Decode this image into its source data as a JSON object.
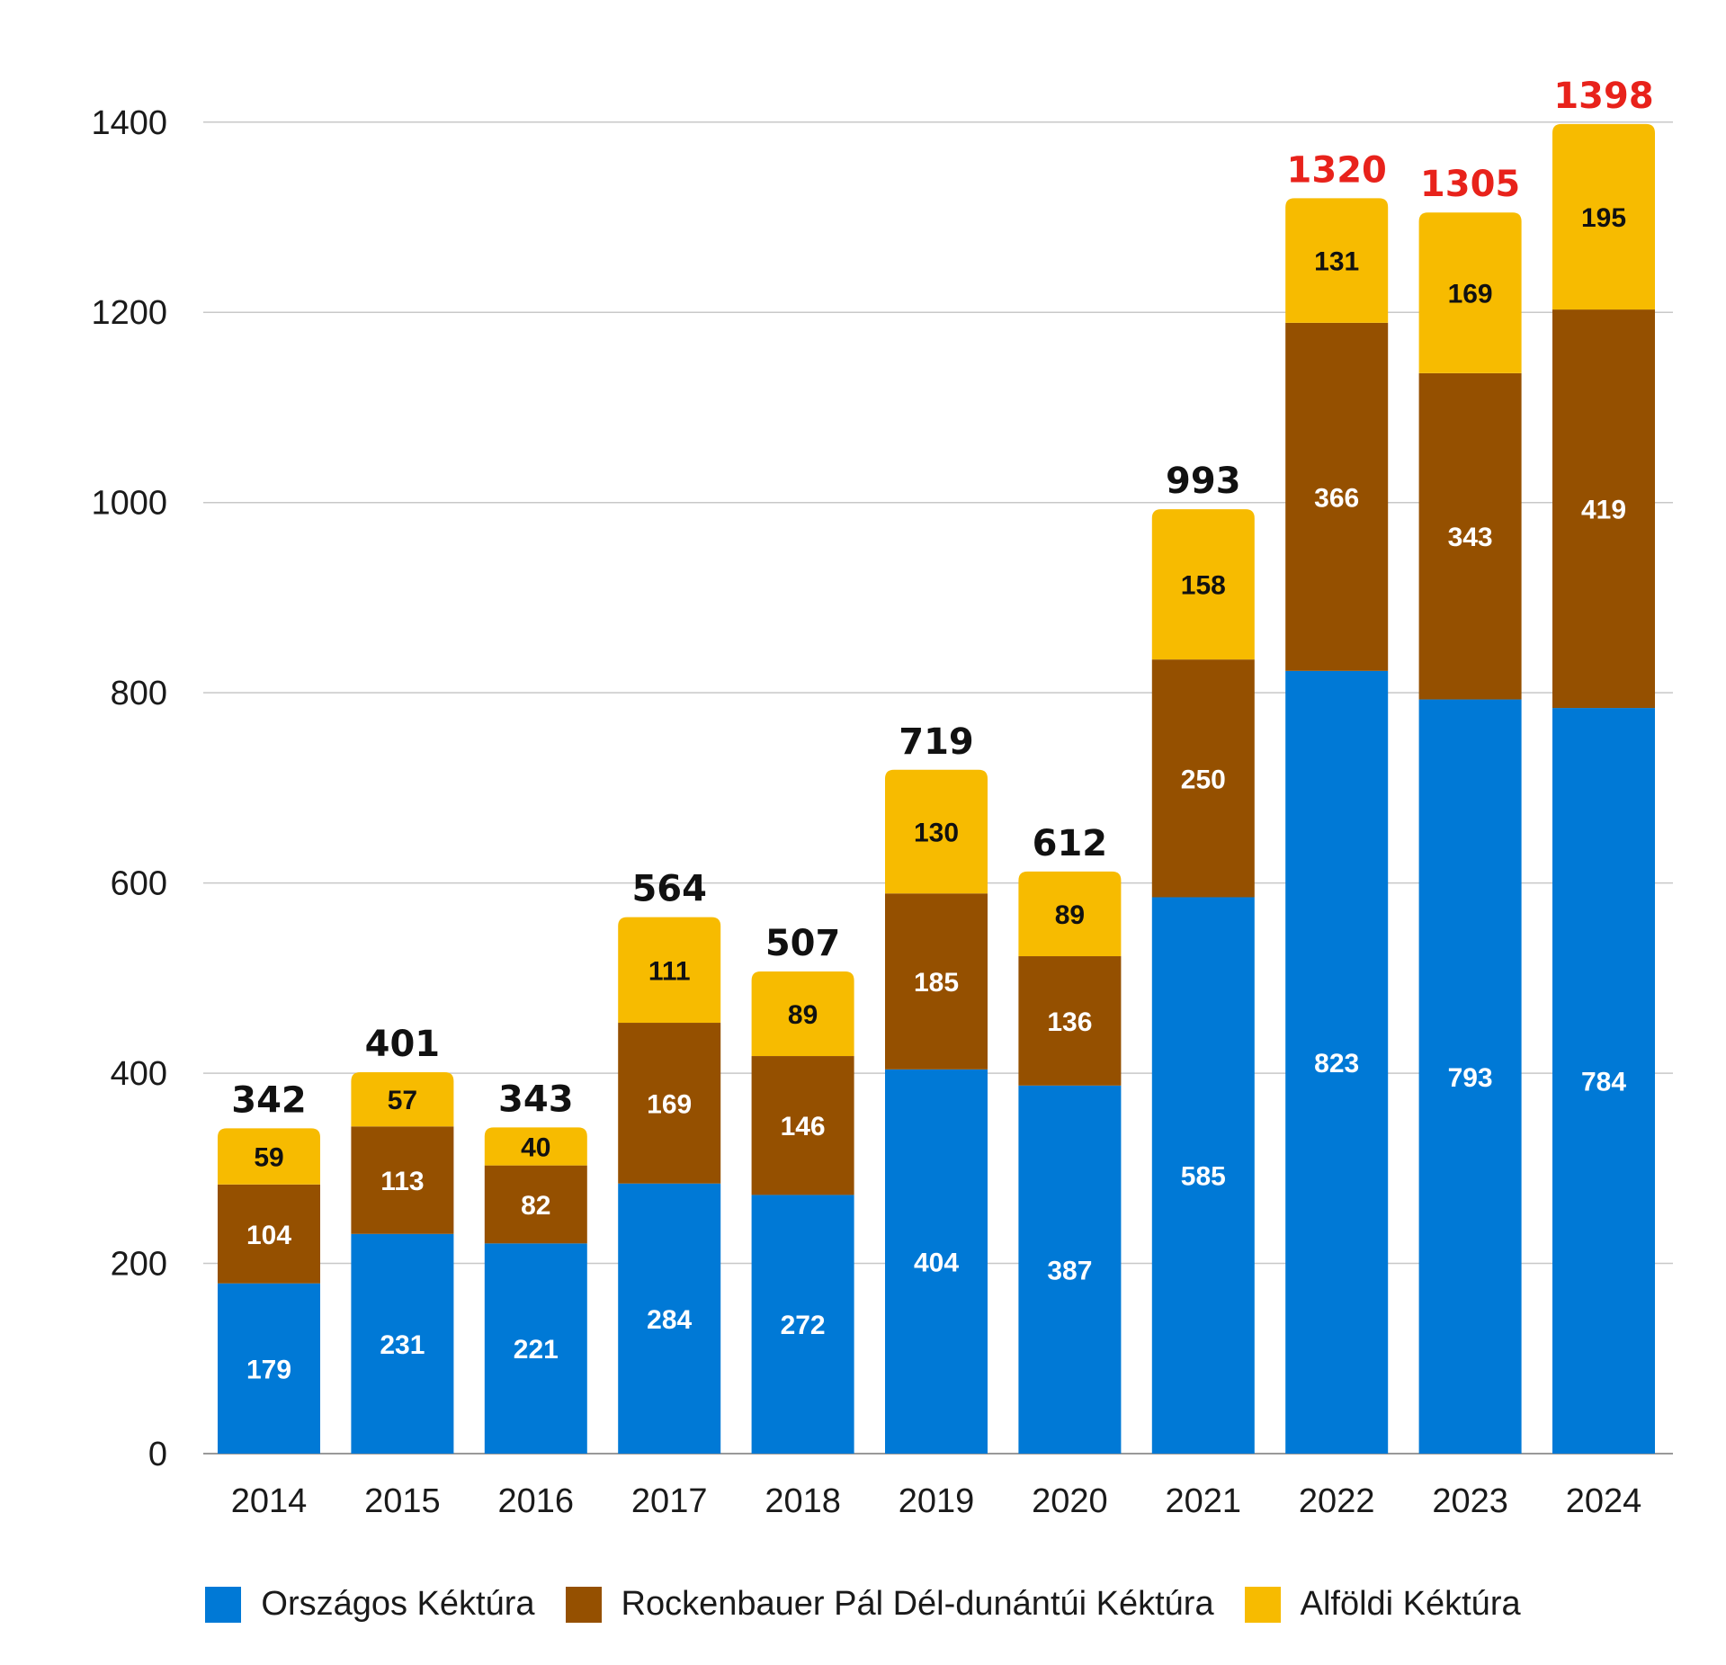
{
  "chart_data": {
    "type": "bar",
    "stacked": true,
    "categories": [
      "2014",
      "2015",
      "2016",
      "2017",
      "2018",
      "2019",
      "2020",
      "2021",
      "2022",
      "2023",
      "2024"
    ],
    "series": [
      {
        "name": "Országos Kéktúra",
        "color": "#0079D6",
        "label_color": "#ffffff",
        "values": [
          179,
          231,
          221,
          284,
          272,
          404,
          387,
          585,
          823,
          793,
          784
        ]
      },
      {
        "name": "Rockenbauer Pál Dél-dunántúi Kéktúra",
        "color": "#955000",
        "label_color": "#ffffff",
        "values": [
          104,
          113,
          82,
          169,
          146,
          185,
          136,
          250,
          366,
          343,
          419
        ]
      },
      {
        "name": "Alföldi Kéktúra",
        "color": "#F7BB00",
        "label_color": "#111111",
        "values": [
          59,
          57,
          40,
          111,
          89,
          130,
          89,
          158,
          131,
          169,
          195
        ]
      }
    ],
    "totals": [
      342,
      401,
      343,
      564,
      507,
      719,
      612,
      993,
      1320,
      1305,
      1398
    ],
    "highlight_totals_color": "#E8221B",
    "highlighted_categories": [
      "2022",
      "2023",
      "2024"
    ],
    "ylim": [
      0,
      1400
    ],
    "y_ticks": [
      0,
      200,
      400,
      600,
      800,
      1000,
      1200,
      1400
    ],
    "grid": true,
    "legend_position": "bottom",
    "title": "",
    "xlabel": "",
    "ylabel": ""
  }
}
